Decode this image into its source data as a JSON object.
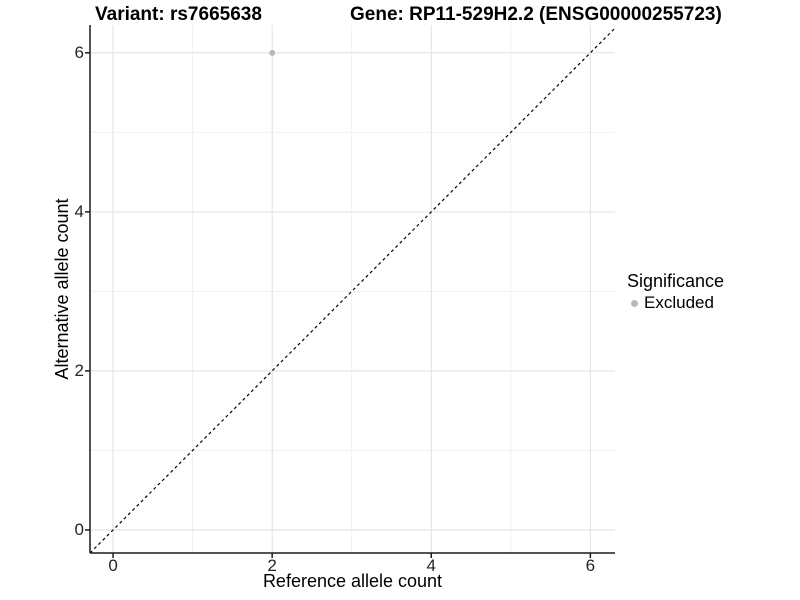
{
  "figure": {
    "title_variant": "Variant: rs7665638",
    "title_gene": "Gene: RP11-529H2.2 (ENSG00000255723)"
  },
  "chart_data": {
    "type": "scatter",
    "title": "Variant: rs7665638    Gene: RP11-529H2.2 (ENSG00000255723)",
    "xlabel": "Reference allele count",
    "ylabel": "Alternative allele count",
    "xlim": [
      -0.29,
      6.31
    ],
    "ylim": [
      -0.29,
      6.35
    ],
    "x_ticks": [
      0,
      2,
      4,
      6
    ],
    "y_ticks": [
      0,
      2,
      4,
      6
    ],
    "x_minor": [
      1,
      3,
      5
    ],
    "y_minor": [
      1,
      3,
      5
    ],
    "grid": "major+minor",
    "points": [
      {
        "x": 2,
        "y": 6,
        "series": "Excluded"
      }
    ],
    "identity_line": {
      "style": "dashed",
      "equation": "y = x"
    },
    "legend": {
      "title": "Significance",
      "position": "right",
      "entries": [
        {
          "label": "Excluded",
          "marker": "circle",
          "color": "#b9b9b9"
        }
      ]
    }
  },
  "colors": {
    "point": "#b9b9b9",
    "grid_major": "#e2e2e2",
    "grid_minor": "#efefef",
    "axis": "#1a1a1a",
    "identity_line": "#000000",
    "title_text": "#000000",
    "tick_text": "#262626",
    "background": "#ffffff"
  }
}
